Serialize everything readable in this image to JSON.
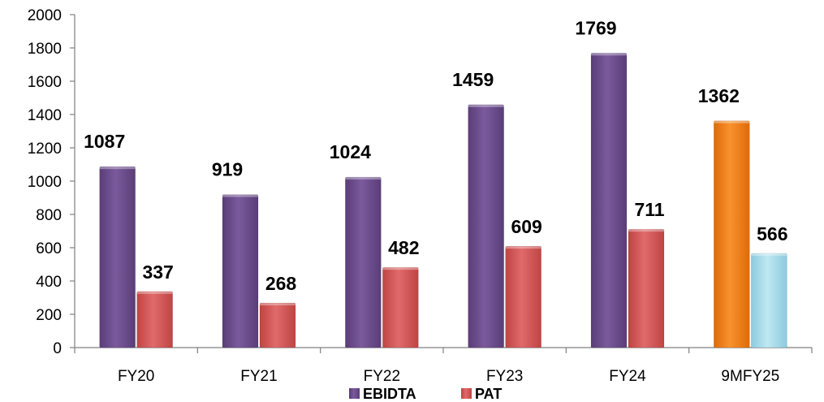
{
  "chart_data": {
    "type": "bar",
    "title": "",
    "xlabel": "",
    "ylabel": "",
    "categories": [
      "FY20",
      "FY21",
      "FY22",
      "FY23",
      "FY24",
      "9MFY25"
    ],
    "ylim": [
      0,
      2000
    ],
    "yticks": [
      0,
      200,
      400,
      600,
      800,
      1000,
      1200,
      1400,
      1600,
      1800,
      2000
    ],
    "grid": false,
    "legend_position": "bottom",
    "series": [
      {
        "name": "EBIDTA",
        "values": [
          1087,
          919,
          1024,
          1459,
          1769,
          1362
        ],
        "color": "#6B4C8A",
        "point_colors": [
          "#6B4C8A",
          "#6B4C8A",
          "#6B4C8A",
          "#6B4C8A",
          "#6B4C8A",
          "#F07D14"
        ]
      },
      {
        "name": "PAT",
        "values": [
          337,
          268,
          482,
          609,
          711,
          566
        ],
        "color": "#D65555",
        "point_colors": [
          "#D65555",
          "#D65555",
          "#D65555",
          "#D65555",
          "#D65555",
          "#A6DCEA"
        ]
      }
    ],
    "data_labels": true
  }
}
